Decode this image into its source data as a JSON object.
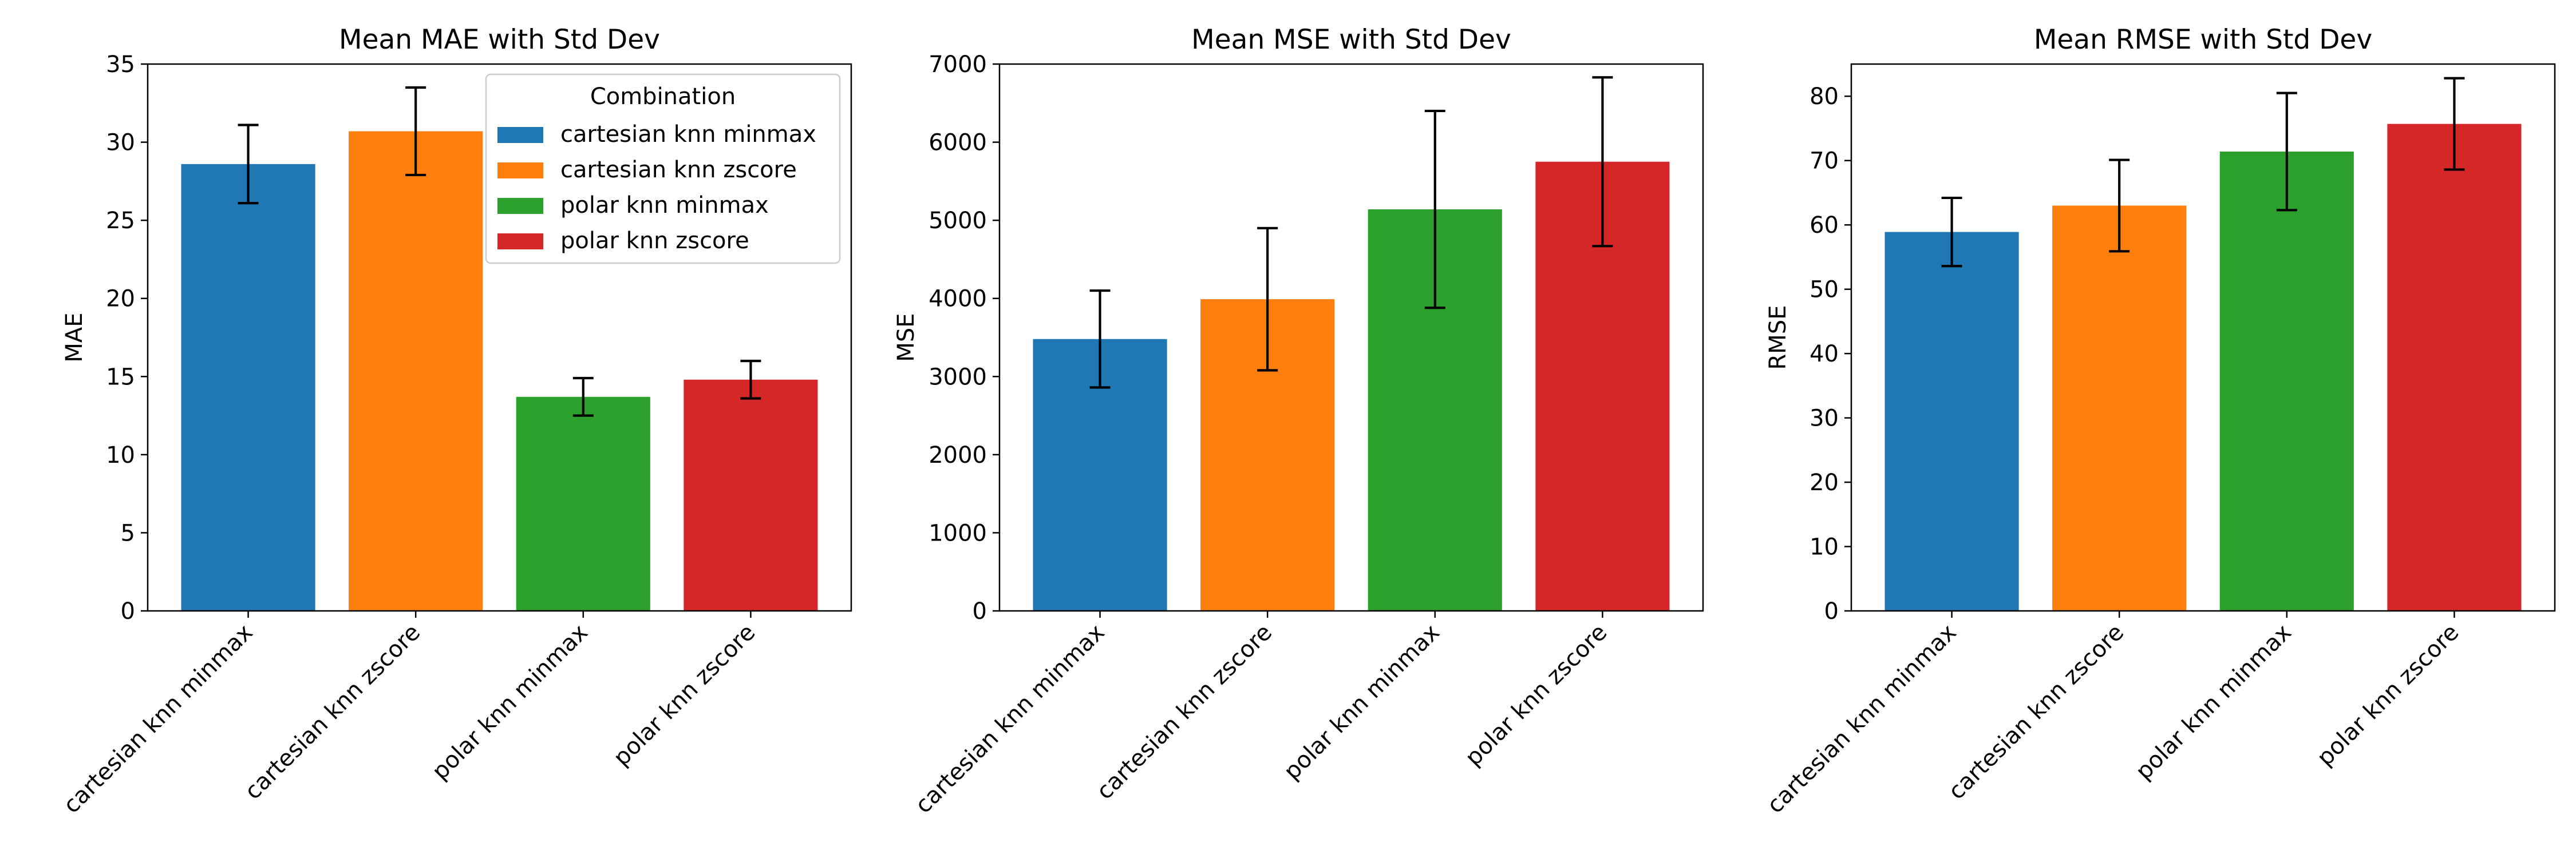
{
  "colors": {
    "cartesian knn minmax": "#1f77b4",
    "cartesian knn zscore": "#ff7f0e",
    "polar knn minmax": "#2ca02c",
    "polar knn zscore": "#d62728"
  },
  "chart_data": [
    {
      "type": "bar",
      "title": "Mean MAE with Std Dev",
      "ylabel": "MAE",
      "xlabel": "",
      "categories": [
        "cartesian knn minmax",
        "cartesian knn zscore",
        "polar knn minmax",
        "polar knn zscore"
      ],
      "values": [
        28.6,
        30.7,
        13.7,
        14.8
      ],
      "errors": [
        2.5,
        2.8,
        1.2,
        1.2
      ],
      "ylim": [
        0,
        35
      ],
      "yticks": [
        0,
        5,
        10,
        15,
        20,
        25,
        30,
        35
      ],
      "grid": false,
      "legend": {
        "title": "Combination",
        "placement": "top-right",
        "entries": [
          "cartesian knn minmax",
          "cartesian knn zscore",
          "polar knn minmax",
          "polar knn zscore"
        ]
      }
    },
    {
      "type": "bar",
      "title": "Mean MSE with Std Dev",
      "ylabel": "MSE",
      "xlabel": "",
      "categories": [
        "cartesian knn minmax",
        "cartesian knn zscore",
        "polar knn minmax",
        "polar knn zscore"
      ],
      "values": [
        3480,
        3990,
        5140,
        5750
      ],
      "errors": [
        620,
        910,
        1260,
        1080
      ],
      "ylim": [
        0,
        7000
      ],
      "yticks": [
        0,
        1000,
        2000,
        3000,
        4000,
        5000,
        6000,
        7000
      ],
      "grid": false
    },
    {
      "type": "bar",
      "title": "Mean RMSE with Std Dev",
      "ylabel": "RMSE",
      "xlabel": "",
      "categories": [
        "cartesian knn minmax",
        "cartesian knn zscore",
        "polar knn minmax",
        "polar knn zscore"
      ],
      "values": [
        58.9,
        63.0,
        71.4,
        75.7
      ],
      "errors": [
        5.3,
        7.1,
        9.1,
        7.1
      ],
      "ylim": [
        0,
        85
      ],
      "yticks": [
        0,
        10,
        20,
        30,
        40,
        50,
        60,
        70,
        80
      ],
      "grid": false
    }
  ]
}
